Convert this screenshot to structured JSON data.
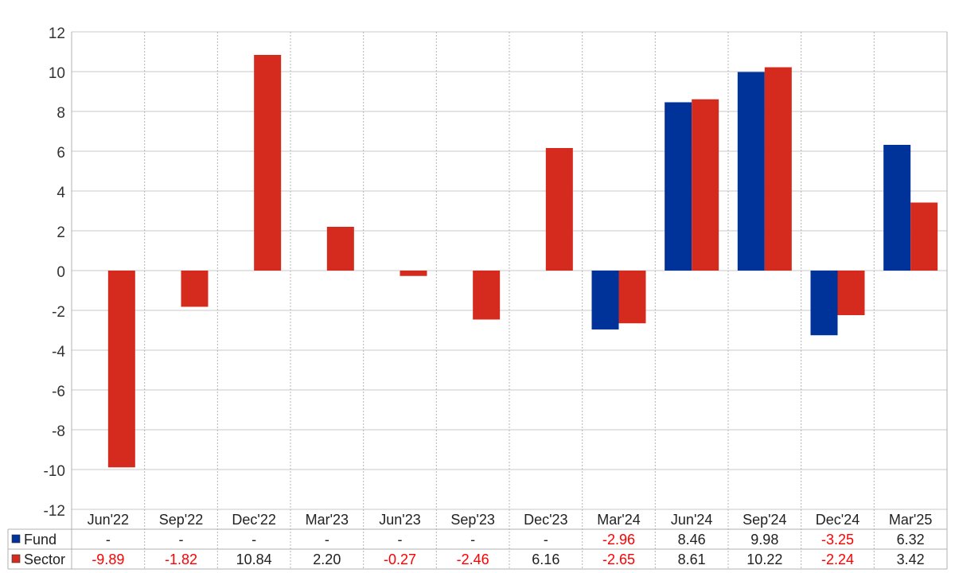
{
  "chart_data": {
    "type": "bar",
    "categories": [
      "Jun'22",
      "Sep'22",
      "Dec'22",
      "Mar'23",
      "Jun'23",
      "Sep'23",
      "Dec'23",
      "Mar'24",
      "Jun'24",
      "Sep'24",
      "Dec'24",
      "Mar'25"
    ],
    "ylim": [
      -12,
      12
    ],
    "yticks": [
      "12",
      "10",
      "8",
      "6",
      "4",
      "2",
      "0",
      "-2",
      "-4",
      "-6",
      "-8",
      "-10",
      "-12"
    ],
    "grid": true,
    "legend": "table-below",
    "series": [
      {
        "name": "Fund",
        "color": "#003399",
        "values": [
          null,
          null,
          null,
          null,
          null,
          null,
          null,
          -2.96,
          8.46,
          9.98,
          -3.25,
          6.32
        ],
        "labels": [
          "-",
          "-",
          "-",
          "-",
          "-",
          "-",
          "-",
          "-2.96",
          "8.46",
          "9.98",
          "-3.25",
          "6.32"
        ]
      },
      {
        "name": "Sector",
        "color": "#d52b1e",
        "values": [
          -9.89,
          -1.82,
          10.84,
          2.2,
          -0.27,
          -2.46,
          6.16,
          -2.65,
          8.61,
          10.22,
          -2.24,
          3.42
        ],
        "labels": [
          "-9.89",
          "-1.82",
          "10.84",
          "2.20",
          "-0.27",
          "-2.46",
          "6.16",
          "-2.65",
          "8.61",
          "10.22",
          "-2.24",
          "3.42"
        ]
      }
    ],
    "negative_label_color": "#ff0000"
  }
}
